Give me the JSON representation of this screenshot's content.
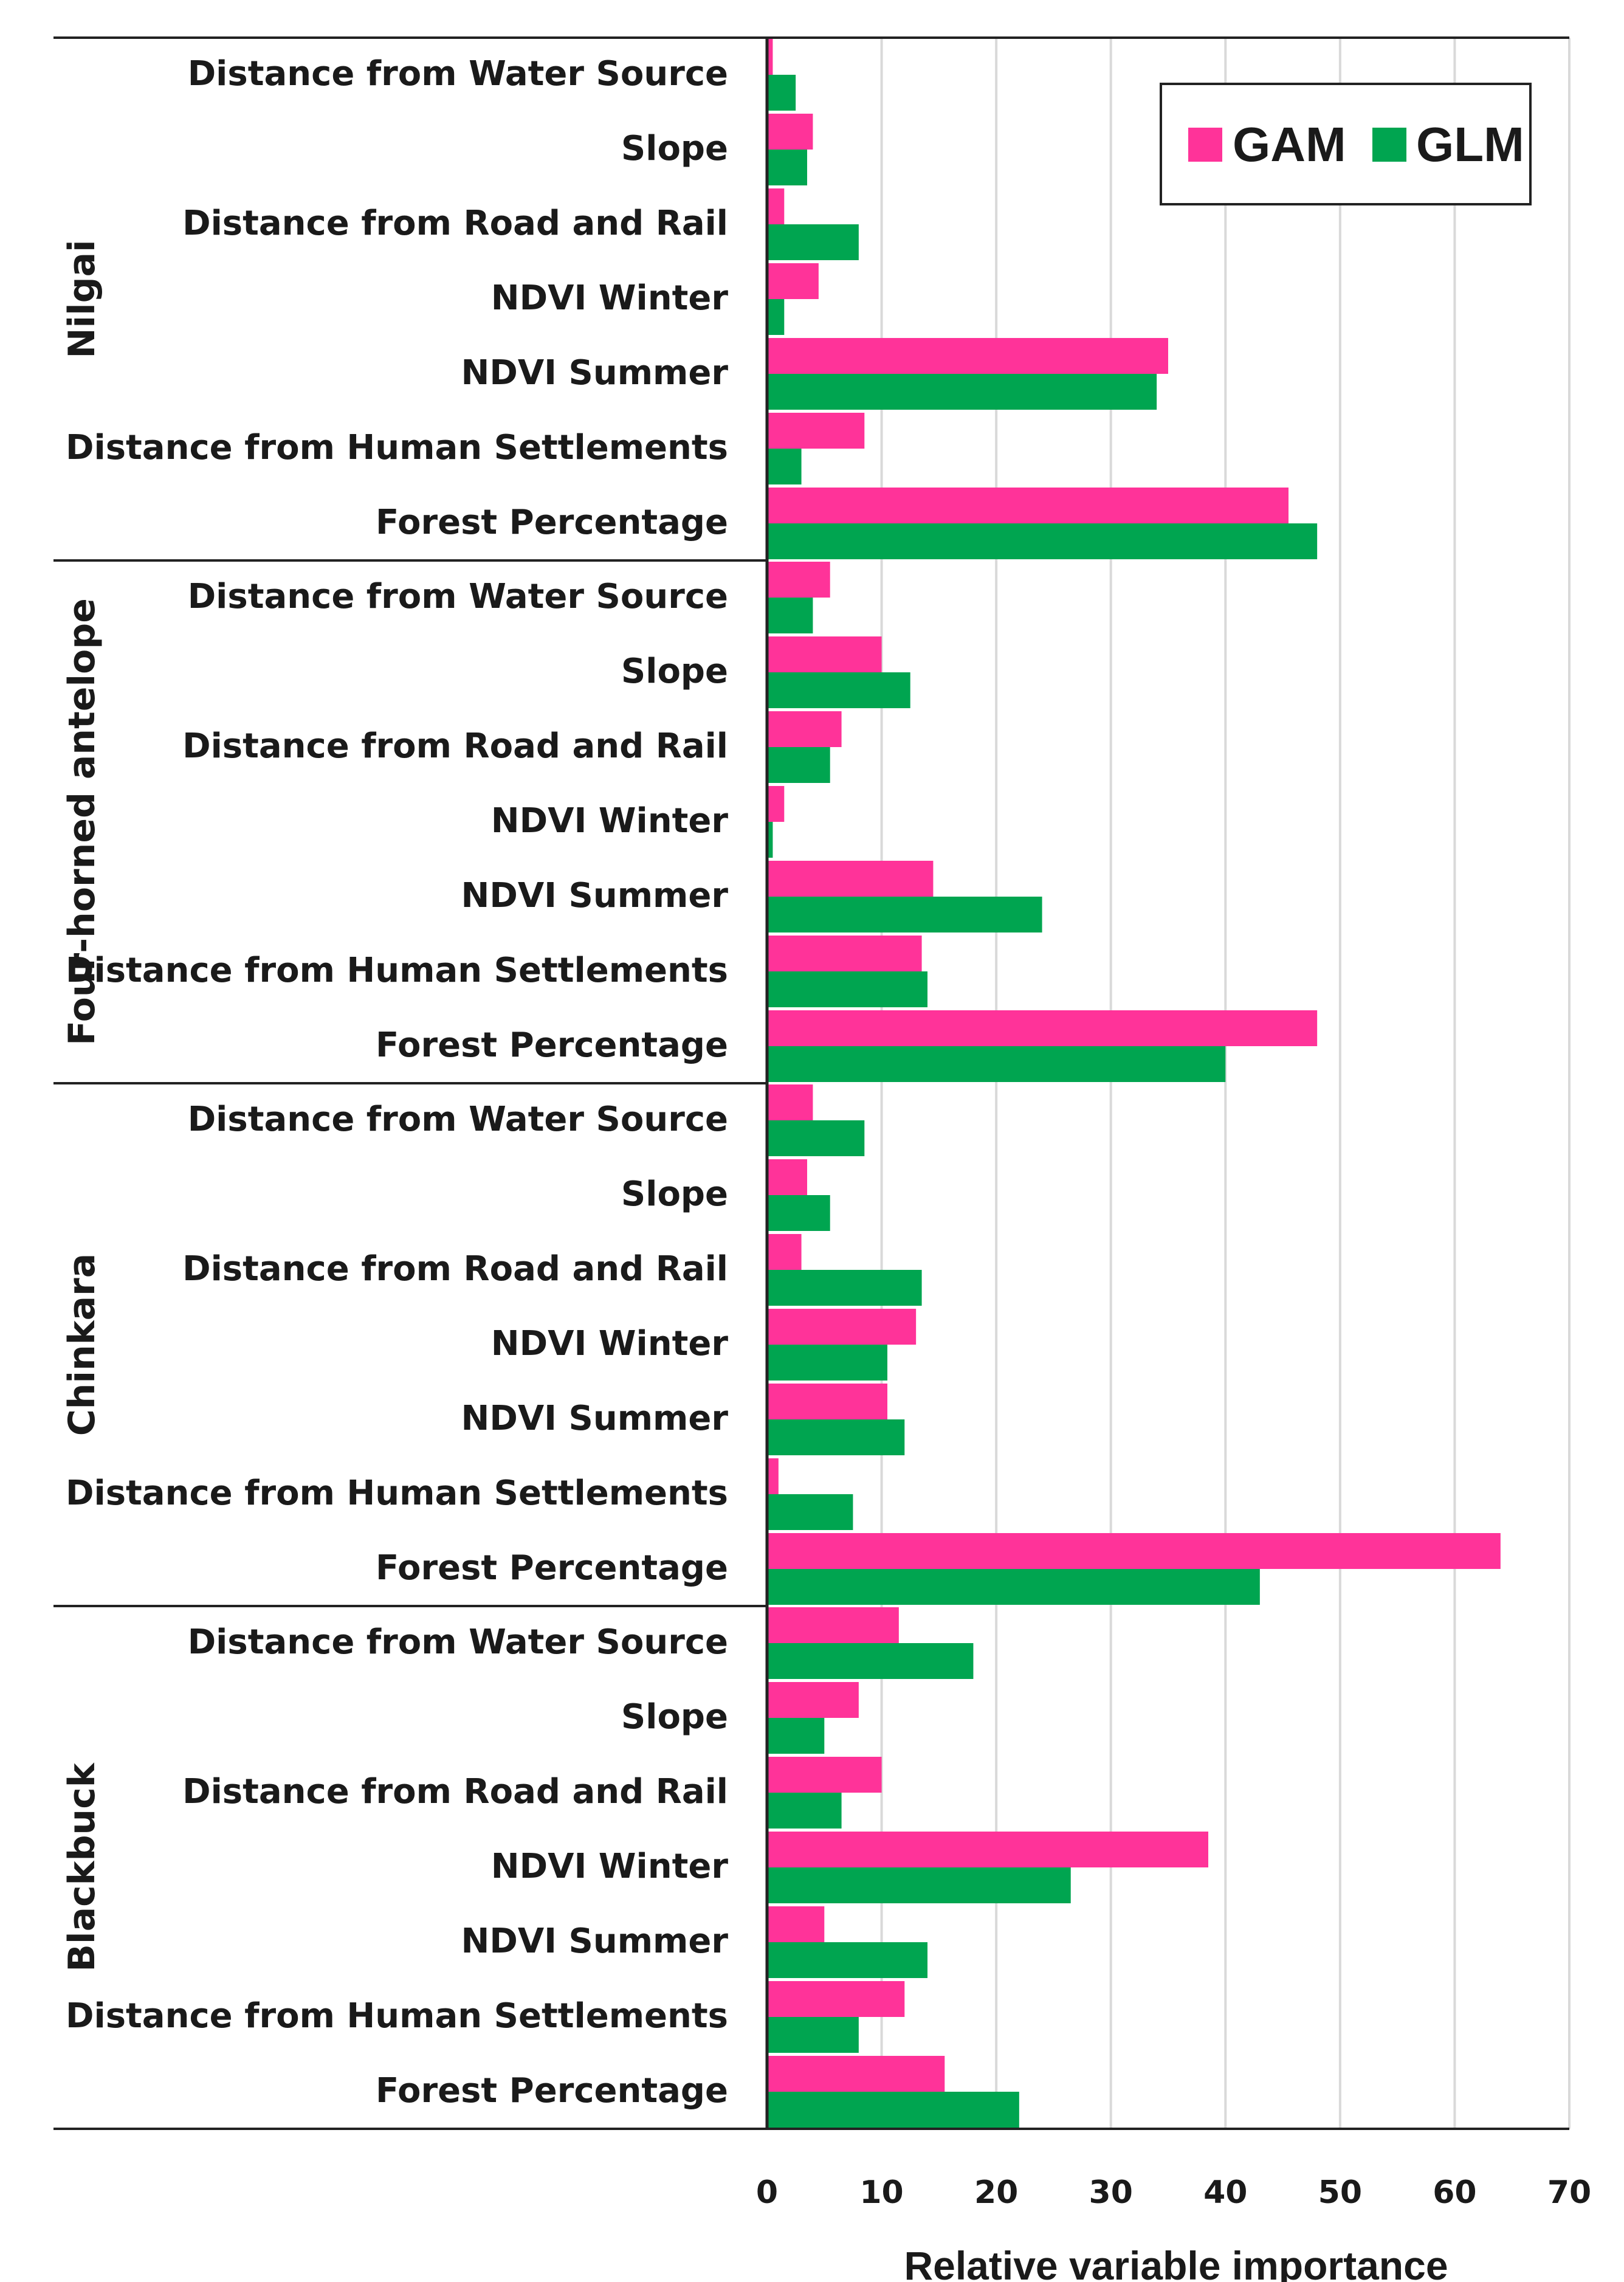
{
  "chart_data": {
    "type": "bar",
    "orientation": "horizontal",
    "xlabel": "Relative variable importance",
    "xlim": [
      0,
      70
    ],
    "xticks": [
      0,
      10,
      20,
      30,
      40,
      50,
      60,
      70
    ],
    "grid": true,
    "legend_position": "top-right",
    "colors": {
      "GAM": "#ff3399",
      "GLM": "#00a550"
    },
    "series_names": [
      "GAM",
      "GLM"
    ],
    "groups": [
      {
        "name": "Nilgai",
        "categories": [
          "Distance from Water Source",
          "Slope",
          "Distance from Road and Rail",
          "NDVI Winter",
          "NDVI Summer",
          "Distance from Human Settlements",
          "Forest Percentage"
        ],
        "series": [
          {
            "name": "GAM",
            "values": [
              0.5,
              4,
              1.5,
              4.5,
              35,
              8.5,
              45.5
            ]
          },
          {
            "name": "GLM",
            "values": [
              2.5,
              3.5,
              8,
              1.5,
              34,
              3,
              48
            ]
          }
        ]
      },
      {
        "name": "Four-horned antelope",
        "categories": [
          "Distance from Water Source",
          "Slope",
          "Distance from Road and Rail",
          "NDVI Winter",
          "NDVI Summer",
          "Distance from Human Settlements",
          "Forest Percentage"
        ],
        "series": [
          {
            "name": "GAM",
            "values": [
              5.5,
              10,
              6.5,
              1.5,
              14.5,
              13.5,
              48
            ]
          },
          {
            "name": "GLM",
            "values": [
              4,
              12.5,
              5.5,
              0.5,
              24,
              14,
              40
            ]
          }
        ]
      },
      {
        "name": "Chinkara",
        "categories": [
          "Distance from Water Source",
          "Slope",
          "Distance from Road and Rail",
          "NDVI Winter",
          "NDVI Summer",
          "Distance from Human Settlements",
          "Forest Percentage"
        ],
        "series": [
          {
            "name": "GAM",
            "values": [
              4,
              3.5,
              3,
              13,
              10.5,
              1,
              64
            ]
          },
          {
            "name": "GLM",
            "values": [
              8.5,
              5.5,
              13.5,
              10.5,
              12,
              7.5,
              43
            ]
          }
        ]
      },
      {
        "name": "Blackbuck",
        "categories": [
          "Distance from Water Source",
          "Slope",
          "Distance from Road and Rail",
          "NDVI Winter",
          "NDVI Summer",
          "Distance from Human Settlements",
          "Forest Percentage"
        ],
        "series": [
          {
            "name": "GAM",
            "values": [
              11.5,
              8,
              10,
              38.5,
              5,
              12,
              15.5
            ]
          },
          {
            "name": "GLM",
            "values": [
              18,
              5,
              6.5,
              26.5,
              14,
              8,
              22
            ]
          }
        ]
      }
    ]
  }
}
